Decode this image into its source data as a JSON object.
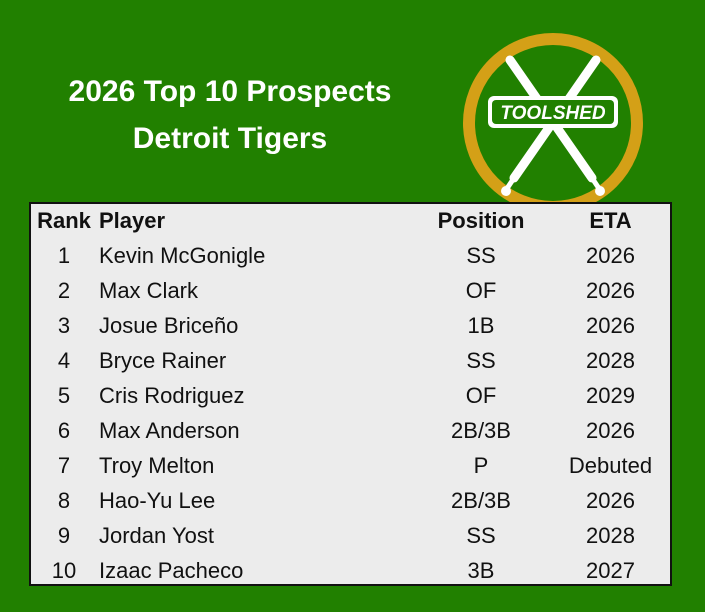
{
  "header": {
    "title_line1": "2026 Top 10 Prospects",
    "title_line2": "Detroit Tigers"
  },
  "logo": {
    "text": "TOOLSHED",
    "ring_color": "#d4a017",
    "fill_color": "#218000"
  },
  "table": {
    "headers": [
      "Rank",
      "Player",
      "Position",
      "ETA"
    ],
    "rows": [
      {
        "rank": "1",
        "player": "Kevin McGonigle",
        "position": "SS",
        "eta": "2026"
      },
      {
        "rank": "2",
        "player": "Max Clark",
        "position": "OF",
        "eta": "2026"
      },
      {
        "rank": "3",
        "player": "Josue Briceño",
        "position": "1B",
        "eta": "2026"
      },
      {
        "rank": "4",
        "player": "Bryce Rainer",
        "position": "SS",
        "eta": "2028"
      },
      {
        "rank": "5",
        "player": "Cris Rodriguez",
        "position": "OF",
        "eta": "2029"
      },
      {
        "rank": "6",
        "player": "Max Anderson",
        "position": "2B/3B",
        "eta": "2026"
      },
      {
        "rank": "7",
        "player": "Troy Melton",
        "position": "P",
        "eta": "Debuted"
      },
      {
        "rank": "8",
        "player": "Hao-Yu Lee",
        "position": "2B/3B",
        "eta": "2026"
      },
      {
        "rank": "9",
        "player": "Jordan Yost",
        "position": "SS",
        "eta": "2028"
      },
      {
        "rank": "10",
        "player": "Izaac Pacheco",
        "position": "3B",
        "eta": "2027"
      }
    ]
  }
}
